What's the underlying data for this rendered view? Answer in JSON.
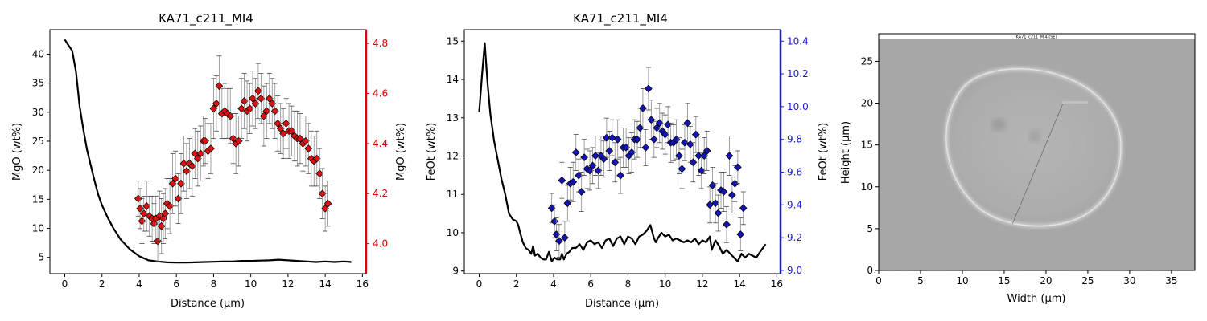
{
  "panels": {
    "mgo": {
      "title": "KA71_c211_MI4",
      "xlabel": "Distance (µm)",
      "ylabel_left": "MgO (wt%)",
      "ylabel_right": "MgO (wt%)",
      "right_axis_color": "#e00000",
      "marker_color": "#dd1111",
      "xlim": [
        -0.8,
        16.2
      ],
      "ylim_left": [
        2.2,
        44.2
      ],
      "ylim_right": [
        3.88,
        4.855
      ],
      "xticks": [
        0,
        2,
        4,
        6,
        8,
        10,
        12,
        14,
        16
      ],
      "yticks_left": [
        5,
        10,
        15,
        20,
        25,
        30,
        35,
        40
      ],
      "yticks_right": [
        4.0,
        4.2,
        4.4,
        4.6,
        4.8
      ]
    },
    "feo": {
      "title": "KA71_c211_MI4",
      "xlabel": "Distance (µm)",
      "ylabel_left": "FeOt (wt%)",
      "ylabel_right": "FeOt (wt%)",
      "right_axis_color": "#1a1adf",
      "marker_color": "#1414b4",
      "xlim": [
        -0.8,
        16.2
      ],
      "ylim_left": [
        8.93,
        15.3
      ],
      "ylim_right": [
        8.98,
        10.47
      ],
      "xticks": [
        0,
        2,
        4,
        6,
        8,
        10,
        12,
        14,
        16
      ],
      "yticks_left": [
        9,
        10,
        11,
        12,
        13,
        14,
        15
      ],
      "yticks_right": [
        9.0,
        9.2,
        9.4,
        9.6,
        9.8,
        10.0,
        10.2,
        10.4
      ]
    },
    "image": {
      "xlabel": "Width (µm)",
      "ylabel": "Height (µm)",
      "caption": "KA71_c211_MI4 (SE)",
      "xlim": [
        0,
        37.8
      ],
      "ylim": [
        0,
        28.3
      ],
      "xticks": [
        0,
        5,
        10,
        15,
        20,
        25,
        30,
        35
      ],
      "yticks": [
        0,
        5,
        10,
        15,
        20,
        25
      ],
      "image_extent_y": [
        0,
        27.5
      ],
      "profile_line": [
        [
          16,
          5.6
        ],
        [
          22,
          19.9
        ]
      ]
    }
  },
  "chart_data": [
    {
      "type": "line",
      "title": "KA71_c211_MI4",
      "xlabel": "Distance (µm)",
      "ylabel": "MgO (wt%)",
      "series": [
        {
          "axis": "left",
          "x": [
            0,
            0.2,
            0.4,
            0.6,
            0.8,
            1.0,
            1.2,
            1.4,
            1.6,
            1.8,
            2.0,
            2.3,
            2.6,
            3.0,
            3.5,
            4.0,
            4.5,
            5.0,
            5.5,
            6.0,
            6.5,
            7.0,
            7.5,
            8.0,
            8.5,
            9.0,
            9.5,
            10.0,
            10.5,
            11.0,
            11.5,
            12.0,
            12.5,
            13.0,
            13.5,
            14.0,
            14.5,
            15.0,
            15.4
          ],
          "y": [
            42.5,
            41.5,
            40.6,
            37,
            31,
            27,
            23.5,
            20.8,
            18.2,
            15.8,
            14.0,
            11.9,
            10.1,
            8.1,
            6.4,
            5.2,
            4.5,
            4.3,
            4.15,
            4.1,
            4.1,
            4.15,
            4.2,
            4.25,
            4.3,
            4.3,
            4.4,
            4.4,
            4.45,
            4.5,
            4.6,
            4.5,
            4.4,
            4.3,
            4.2,
            4.3,
            4.2,
            4.3,
            4.2
          ]
        },
        {
          "axis": "right",
          "x": [
            3.95,
            4.05,
            4.15,
            4.25,
            4.4,
            4.55,
            4.7,
            4.8,
            4.9,
            5.0,
            5.1,
            5.2,
            5.3,
            5.4,
            5.5,
            5.65,
            5.8,
            5.95,
            6.1,
            6.25,
            6.4,
            6.55,
            6.7,
            6.85,
            7.0,
            7.15,
            7.3,
            7.45,
            7.55,
            7.7,
            7.85,
            8.0,
            8.15,
            8.3,
            8.45,
            8.6,
            8.75,
            8.9,
            9.05,
            9.2,
            9.35,
            9.5,
            9.65,
            9.8,
            9.95,
            10.1,
            10.25,
            10.4,
            10.55,
            10.7,
            10.85,
            11.0,
            11.15,
            11.3,
            11.45,
            11.6,
            11.75,
            11.9,
            12.05,
            12.2,
            12.35,
            12.5,
            12.65,
            12.8,
            12.95,
            13.1,
            13.25,
            13.4,
            13.55,
            13.7,
            13.85,
            14.0,
            14.15
          ],
          "y": [
            4.18,
            4.14,
            4.09,
            4.12,
            4.15,
            4.11,
            4.1,
            4.08,
            4.1,
            4.01,
            4.11,
            4.07,
            4.1,
            4.12,
            4.16,
            4.15,
            4.24,
            4.26,
            4.18,
            4.24,
            4.32,
            4.29,
            4.32,
            4.31,
            4.36,
            4.34,
            4.36,
            4.41,
            4.41,
            4.37,
            4.38,
            4.54,
            4.56,
            4.63,
            4.52,
            4.53,
            4.52,
            4.51,
            4.42,
            4.4,
            4.41,
            4.54,
            4.57,
            4.53,
            4.54,
            4.58,
            4.56,
            4.61,
            4.58,
            4.51,
            4.53,
            4.58,
            4.56,
            4.53,
            4.48,
            4.46,
            4.44,
            4.48,
            4.45,
            4.45,
            4.43,
            4.42,
            4.42,
            4.4,
            4.41,
            4.38,
            4.34,
            4.33,
            4.34,
            4.28,
            4.2,
            4.14,
            4.16
          ],
          "errors": [
            0.07,
            0.08,
            0.09,
            0.07,
            0.1,
            0.08,
            0.09,
            0.08,
            0.09,
            0.08,
            0.1,
            0.11,
            0.1,
            0.1,
            0.1,
            0.11,
            0.12,
            0.11,
            0.1,
            0.12,
            0.11,
            0.11,
            0.1,
            0.12,
            0.1,
            0.11,
            0.11,
            0.1,
            0.09,
            0.11,
            0.1,
            0.12,
            0.11,
            0.12,
            0.1,
            0.11,
            0.1,
            0.11,
            0.1,
            0.12,
            0.1,
            0.12,
            0.11,
            0.12,
            0.1,
            0.11,
            0.1,
            0.11,
            0.1,
            0.12,
            0.11,
            0.1,
            0.1,
            0.11,
            0.11,
            0.1,
            0.1,
            0.1,
            0.11,
            0.1,
            0.1,
            0.11,
            0.1,
            0.11,
            0.1,
            0.1,
            0.11,
            0.1,
            0.11,
            0.1,
            0.1,
            0.09,
            0.09
          ]
        }
      ]
    },
    {
      "type": "line",
      "title": "KA71_c211_MI4",
      "xlabel": "Distance (µm)",
      "ylabel": "FeOt (wt%)",
      "series": [
        {
          "axis": "left",
          "x": [
            0,
            0.15,
            0.3,
            0.45,
            0.6,
            0.8,
            1.0,
            1.2,
            1.4,
            1.6,
            1.8,
            2.0,
            2.1,
            2.2,
            2.35,
            2.5,
            2.65,
            2.8,
            2.9,
            3.0,
            3.15,
            3.3,
            3.45,
            3.6,
            3.75,
            3.9,
            4.05,
            4.2,
            4.35,
            4.45,
            4.55,
            4.7,
            4.85,
            5.0,
            5.2,
            5.4,
            5.6,
            5.8,
            6.0,
            6.2,
            6.4,
            6.6,
            6.8,
            7.0,
            7.2,
            7.4,
            7.6,
            7.8,
            8.0,
            8.2,
            8.4,
            8.6,
            8.8,
            9.0,
            9.2,
            9.4,
            9.5,
            9.6,
            9.8,
            10.0,
            10.2,
            10.4,
            10.6,
            10.8,
            11.0,
            11.2,
            11.4,
            11.6,
            11.8,
            12.0,
            12.2,
            12.4,
            12.5,
            12.7,
            12.9,
            13.1,
            13.3,
            13.5,
            13.7,
            13.9,
            14.1,
            14.3,
            14.5,
            14.7,
            14.9,
            15.1,
            15.4
          ],
          "y": [
            13.15,
            14.1,
            14.95,
            13.9,
            13.1,
            12.4,
            11.9,
            11.4,
            11.0,
            10.5,
            10.35,
            10.3,
            10.2,
            10.0,
            9.75,
            9.6,
            9.55,
            9.45,
            9.65,
            9.4,
            9.45,
            9.35,
            9.3,
            9.3,
            9.5,
            9.25,
            9.35,
            9.3,
            9.3,
            9.45,
            9.3,
            9.45,
            9.5,
            9.6,
            9.6,
            9.7,
            9.55,
            9.75,
            9.8,
            9.7,
            9.75,
            9.6,
            9.8,
            9.85,
            9.65,
            9.85,
            9.9,
            9.7,
            9.9,
            9.85,
            9.7,
            9.9,
            9.95,
            10.05,
            10.2,
            9.85,
            9.75,
            9.85,
            10.0,
            9.9,
            9.95,
            9.8,
            9.85,
            9.8,
            9.75,
            9.8,
            9.75,
            9.85,
            9.7,
            9.8,
            9.75,
            9.9,
            9.55,
            9.8,
            9.65,
            9.45,
            9.55,
            9.45,
            9.35,
            9.25,
            9.45,
            9.35,
            9.45,
            9.4,
            9.35,
            9.5,
            9.7
          ]
        },
        {
          "axis": "right",
          "x": [
            3.9,
            4.05,
            4.15,
            4.3,
            4.45,
            4.6,
            4.75,
            4.9,
            5.05,
            5.2,
            5.35,
            5.5,
            5.65,
            5.8,
            5.95,
            6.1,
            6.25,
            6.4,
            6.55,
            6.7,
            6.85,
            7.0,
            7.15,
            7.3,
            7.45,
            7.6,
            7.75,
            7.9,
            8.05,
            8.2,
            8.35,
            8.5,
            8.65,
            8.8,
            8.95,
            9.1,
            9.25,
            9.4,
            9.55,
            9.7,
            9.85,
            10.0,
            10.15,
            10.3,
            10.45,
            10.6,
            10.75,
            10.9,
            11.05,
            11.2,
            11.35,
            11.5,
            11.65,
            11.8,
            11.95,
            12.1,
            12.25,
            12.4,
            12.55,
            12.7,
            12.85,
            13.0,
            13.15,
            13.3,
            13.45,
            13.6,
            13.75,
            13.9,
            14.05,
            14.2
          ],
          "y": [
            9.38,
            9.3,
            9.22,
            9.18,
            9.55,
            9.2,
            9.41,
            9.53,
            9.54,
            9.72,
            9.58,
            9.48,
            9.69,
            9.62,
            9.61,
            9.64,
            9.7,
            9.61,
            9.7,
            9.68,
            9.81,
            9.73,
            9.81,
            9.66,
            9.8,
            9.58,
            9.75,
            9.75,
            9.7,
            9.72,
            9.8,
            9.8,
            9.87,
            9.99,
            9.75,
            10.11,
            9.92,
            9.8,
            9.87,
            9.9,
            9.85,
            9.83,
            9.89,
            9.78,
            9.78,
            9.8,
            9.7,
            9.62,
            9.78,
            9.9,
            9.77,
            9.66,
            9.83,
            9.7,
            9.61,
            9.7,
            9.73,
            9.4,
            9.52,
            9.41,
            9.35,
            9.49,
            9.48,
            9.28,
            9.7,
            9.46,
            9.53,
            9.63,
            9.22,
            9.38
          ],
          "errors": [
            0.09,
            0.1,
            0.1,
            0.1,
            0.11,
            0.1,
            0.11,
            0.1,
            0.12,
            0.11,
            0.1,
            0.12,
            0.11,
            0.12,
            0.12,
            0.11,
            0.12,
            0.11,
            0.12,
            0.11,
            0.12,
            0.12,
            0.11,
            0.12,
            0.12,
            0.11,
            0.12,
            0.12,
            0.11,
            0.12,
            0.12,
            0.11,
            0.12,
            0.12,
            0.11,
            0.13,
            0.12,
            0.11,
            0.12,
            0.12,
            0.11,
            0.12,
            0.11,
            0.12,
            0.11,
            0.12,
            0.11,
            0.12,
            0.11,
            0.12,
            0.11,
            0.12,
            0.11,
            0.12,
            0.11,
            0.11,
            0.12,
            0.11,
            0.11,
            0.12,
            0.11,
            0.11,
            0.12,
            0.11,
            0.12,
            0.11,
            0.11,
            0.1,
            0.1,
            0.1
          ]
        }
      ]
    }
  ]
}
